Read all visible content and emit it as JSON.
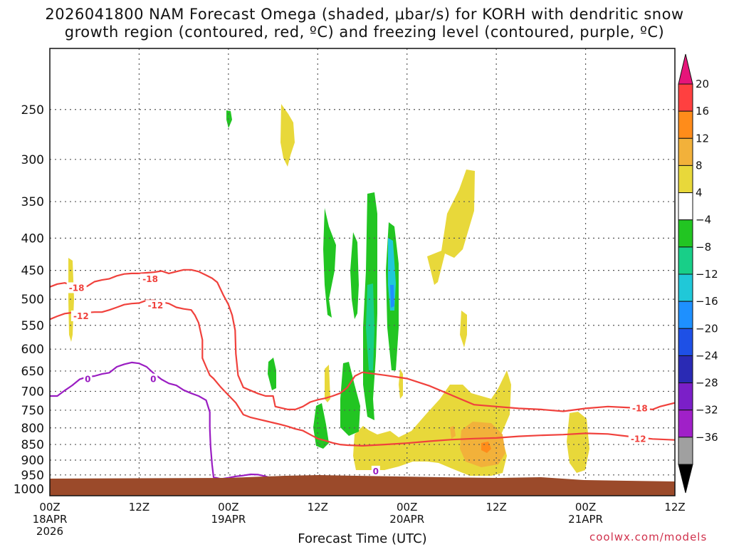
{
  "chart_data": {
    "type": "time-height contour",
    "title_line1": "2026041800 NAM Forecast Omega (shaded, μbar/s) for KORH with dendritic snow",
    "title_line2": "growth region (contoured, red, ºC) and freezing level (contoured, purple, ºC)",
    "xlabel": "Forecast Time (UTC)",
    "credit": "coolwx.com/models",
    "y_axis": {
      "scale": "log-pressure",
      "range_hpa": [
        200,
        1025
      ],
      "ticks": [
        250,
        300,
        350,
        400,
        450,
        500,
        550,
        600,
        650,
        700,
        750,
        800,
        850,
        900,
        950,
        1000
      ]
    },
    "x_axis": {
      "range_hours": [
        0,
        84
      ],
      "ticks": [
        {
          "hour": 0,
          "lines": [
            "00Z",
            "18APR",
            "2026"
          ]
        },
        {
          "hour": 12,
          "lines": [
            "12Z"
          ]
        },
        {
          "hour": 24,
          "lines": [
            "00Z",
            "19APR"
          ]
        },
        {
          "hour": 36,
          "lines": [
            "12Z"
          ]
        },
        {
          "hour": 48,
          "lines": [
            "00Z",
            "20APR"
          ]
        },
        {
          "hour": 60,
          "lines": [
            "12Z"
          ]
        },
        {
          "hour": 72,
          "lines": [
            "00Z",
            "21APR"
          ]
        },
        {
          "hour": 84,
          "lines": [
            "12Z"
          ]
        }
      ]
    },
    "colorbar": {
      "labels": [
        "20",
        "16",
        "12",
        "8",
        "4",
        "−4",
        "−8",
        "−12",
        "−16",
        "−20",
        "−24",
        "−28",
        "−32",
        "−36"
      ],
      "colors": [
        "#ff4040",
        "#ff8c1a",
        "#f2b13a",
        "#e8d83a",
        "#ffffff",
        "#22c522",
        "#18cf88",
        "#20c8d8",
        "#1e90ff",
        "#1e50e6",
        "#2a2ab4",
        "#7b1fc8",
        "#a020c8",
        "#a0a0a0"
      ],
      "top_arrow_color": "#e6157a",
      "bottom_arrow_color": "#000000"
    },
    "colors": {
      "dgz_line": "#f0413c",
      "freezing_line": "#9a1dc2",
      "ground": "#9b4a2a",
      "grid": "#555555"
    },
    "contour_labels": [
      {
        "text": "-18",
        "series": "dgz_top",
        "hour": 3.6,
        "p": 480
      },
      {
        "text": "-12",
        "series": "dgz_bottom",
        "hour": 4.2,
        "p": 532
      },
      {
        "text": "-18",
        "series": "dgz_top",
        "hour": 13.5,
        "p": 465
      },
      {
        "text": "-12",
        "series": "dgz_bottom",
        "hour": 14.2,
        "p": 512
      },
      {
        "text": "-18",
        "series": "dgz_east",
        "hour": 79.3,
        "p": 745
      },
      {
        "text": "-12",
        "series": "dgz_east",
        "hour": 79.1,
        "p": 833
      },
      {
        "text": "0",
        "series": "freezing",
        "hour": 5.1,
        "p": 670
      },
      {
        "text": "0",
        "series": "freezing",
        "hour": 13.9,
        "p": 670
      },
      {
        "text": "0",
        "series": "freezing",
        "hour": 43.8,
        "p": 938
      }
    ],
    "series": {
      "dgz_top": [
        [
          0,
          478
        ],
        [
          1,
          473
        ],
        [
          2,
          471
        ],
        [
          3,
          475
        ],
        [
          4,
          478
        ],
        [
          5,
          477
        ],
        [
          6,
          469
        ],
        [
          7,
          466
        ],
        [
          8,
          464
        ],
        [
          9,
          459
        ],
        [
          10,
          456
        ],
        [
          11,
          455
        ],
        [
          12,
          455
        ],
        [
          13,
          454
        ],
        [
          14,
          453
        ],
        [
          15,
          451
        ],
        [
          16,
          455
        ],
        [
          17,
          452
        ],
        [
          18,
          449
        ],
        [
          19,
          449
        ],
        [
          20,
          452
        ],
        [
          21,
          458
        ],
        [
          21.8,
          463
        ],
        [
          22.5,
          470
        ],
        [
          23.3,
          492
        ],
        [
          24,
          510
        ],
        [
          24.5,
          530
        ],
        [
          24.9,
          560
        ],
        [
          25,
          610
        ],
        [
          25.3,
          660
        ],
        [
          26,
          690
        ],
        [
          27,
          698
        ],
        [
          28,
          706
        ],
        [
          29,
          712
        ],
        [
          30,
          712
        ],
        [
          30.3,
          740
        ],
        [
          32,
          748
        ],
        [
          33,
          748
        ],
        [
          34,
          740
        ],
        [
          35,
          728
        ],
        [
          36,
          722
        ],
        [
          37,
          718
        ],
        [
          38,
          712
        ],
        [
          39,
          705
        ],
        [
          40,
          690
        ],
        [
          41,
          662
        ],
        [
          42,
          653
        ]
      ],
      "dgz_bottom": [
        [
          0,
          538
        ],
        [
          1,
          532
        ],
        [
          2,
          527
        ],
        [
          3,
          525
        ],
        [
          4,
          524
        ],
        [
          5,
          525
        ],
        [
          6,
          524
        ],
        [
          7,
          524
        ],
        [
          8,
          520
        ],
        [
          9,
          515
        ],
        [
          10,
          510
        ],
        [
          11,
          508
        ],
        [
          12,
          507
        ],
        [
          13,
          502
        ],
        [
          14,
          502
        ],
        [
          15,
          505
        ],
        [
          16,
          508
        ],
        [
          17,
          515
        ],
        [
          18,
          518
        ],
        [
          19,
          520
        ],
        [
          19.5,
          530
        ],
        [
          20,
          545
        ],
        [
          20.5,
          580
        ],
        [
          20.5,
          620
        ],
        [
          21,
          640
        ],
        [
          21.5,
          660
        ],
        [
          22,
          668
        ],
        [
          23,
          690
        ],
        [
          24,
          710
        ],
        [
          25,
          730
        ],
        [
          26,
          762
        ],
        [
          27,
          770
        ],
        [
          28,
          775
        ],
        [
          29,
          780
        ],
        [
          30,
          785
        ],
        [
          31,
          790
        ],
        [
          32,
          796
        ],
        [
          33,
          803
        ],
        [
          34,
          808
        ],
        [
          35,
          820
        ],
        [
          36,
          832
        ],
        [
          37,
          838
        ],
        [
          38,
          845
        ],
        [
          39,
          850
        ],
        [
          40,
          852
        ],
        [
          41,
          853
        ],
        [
          42,
          854
        ]
      ],
      "dgz_east": [],
      "freezing": [
        [
          0,
          712
        ],
        [
          1,
          712
        ],
        [
          2,
          698
        ],
        [
          3,
          685
        ],
        [
          4,
          670
        ],
        [
          5,
          664
        ],
        [
          6,
          662
        ],
        [
          7,
          657
        ],
        [
          8,
          654
        ],
        [
          9,
          640
        ],
        [
          10,
          634
        ],
        [
          11,
          630
        ],
        [
          12,
          632
        ],
        [
          13,
          640
        ],
        [
          14,
          656
        ],
        [
          15,
          670
        ],
        [
          16,
          680
        ],
        [
          17,
          685
        ],
        [
          18,
          697
        ],
        [
          19,
          705
        ],
        [
          20,
          712
        ],
        [
          21,
          723
        ],
        [
          21.5,
          755
        ],
        [
          21.5,
          800
        ],
        [
          21.6,
          856
        ],
        [
          21.8,
          915
        ],
        [
          22,
          958
        ],
        [
          23,
          964
        ],
        [
          24,
          960
        ],
        [
          25,
          955
        ],
        [
          26,
          952
        ],
        [
          27,
          948
        ],
        [
          28,
          949
        ],
        [
          28.5,
          952
        ],
        [
          29,
          955
        ],
        [
          30,
          963
        ],
        [
          31,
          967
        ],
        [
          32,
          970
        ],
        [
          33,
          965
        ],
        [
          34,
          960
        ],
        [
          35,
          957
        ],
        [
          36,
          955
        ],
        [
          37,
          956
        ],
        [
          38,
          962
        ],
        [
          39,
          968
        ],
        [
          40,
          972
        ],
        [
          41,
          977
        ],
        [
          42,
          983
        ]
      ]
    }
  }
}
